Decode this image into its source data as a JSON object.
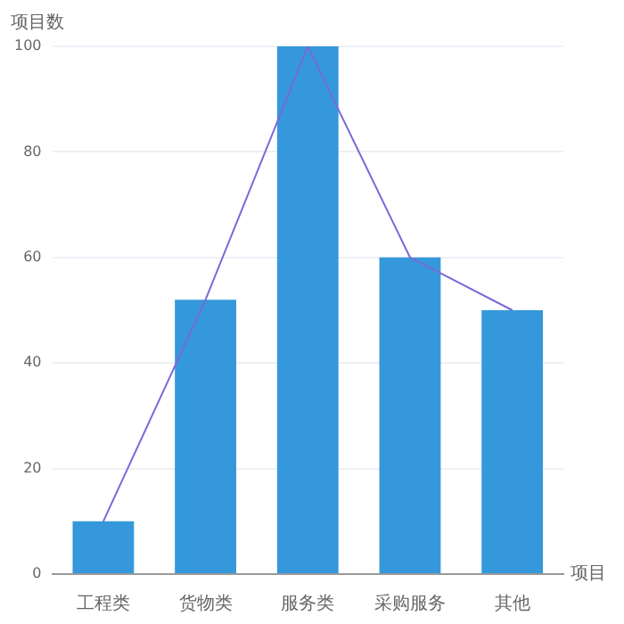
{
  "chart_data": {
    "type": "bar",
    "xlabel": "项目",
    "ylabel": "项目数",
    "categories": [
      "工程类",
      "货物类",
      "服务类",
      "采购服务",
      "其他"
    ],
    "series": [
      {
        "color": "#3498db",
        "values": [
          10,
          52,
          100,
          60,
          50
        ]
      },
      {
        "type": "line",
        "color": "#7b68d8",
        "values": [
          10,
          52,
          100,
          60,
          50
        ]
      }
    ],
    "ylim": [
      0,
      100
    ],
    "yticks": [
      0,
      20,
      40,
      60,
      80,
      100
    ],
    "grid": "y",
    "legend": false,
    "marker": "none",
    "line_style": "solid"
  }
}
